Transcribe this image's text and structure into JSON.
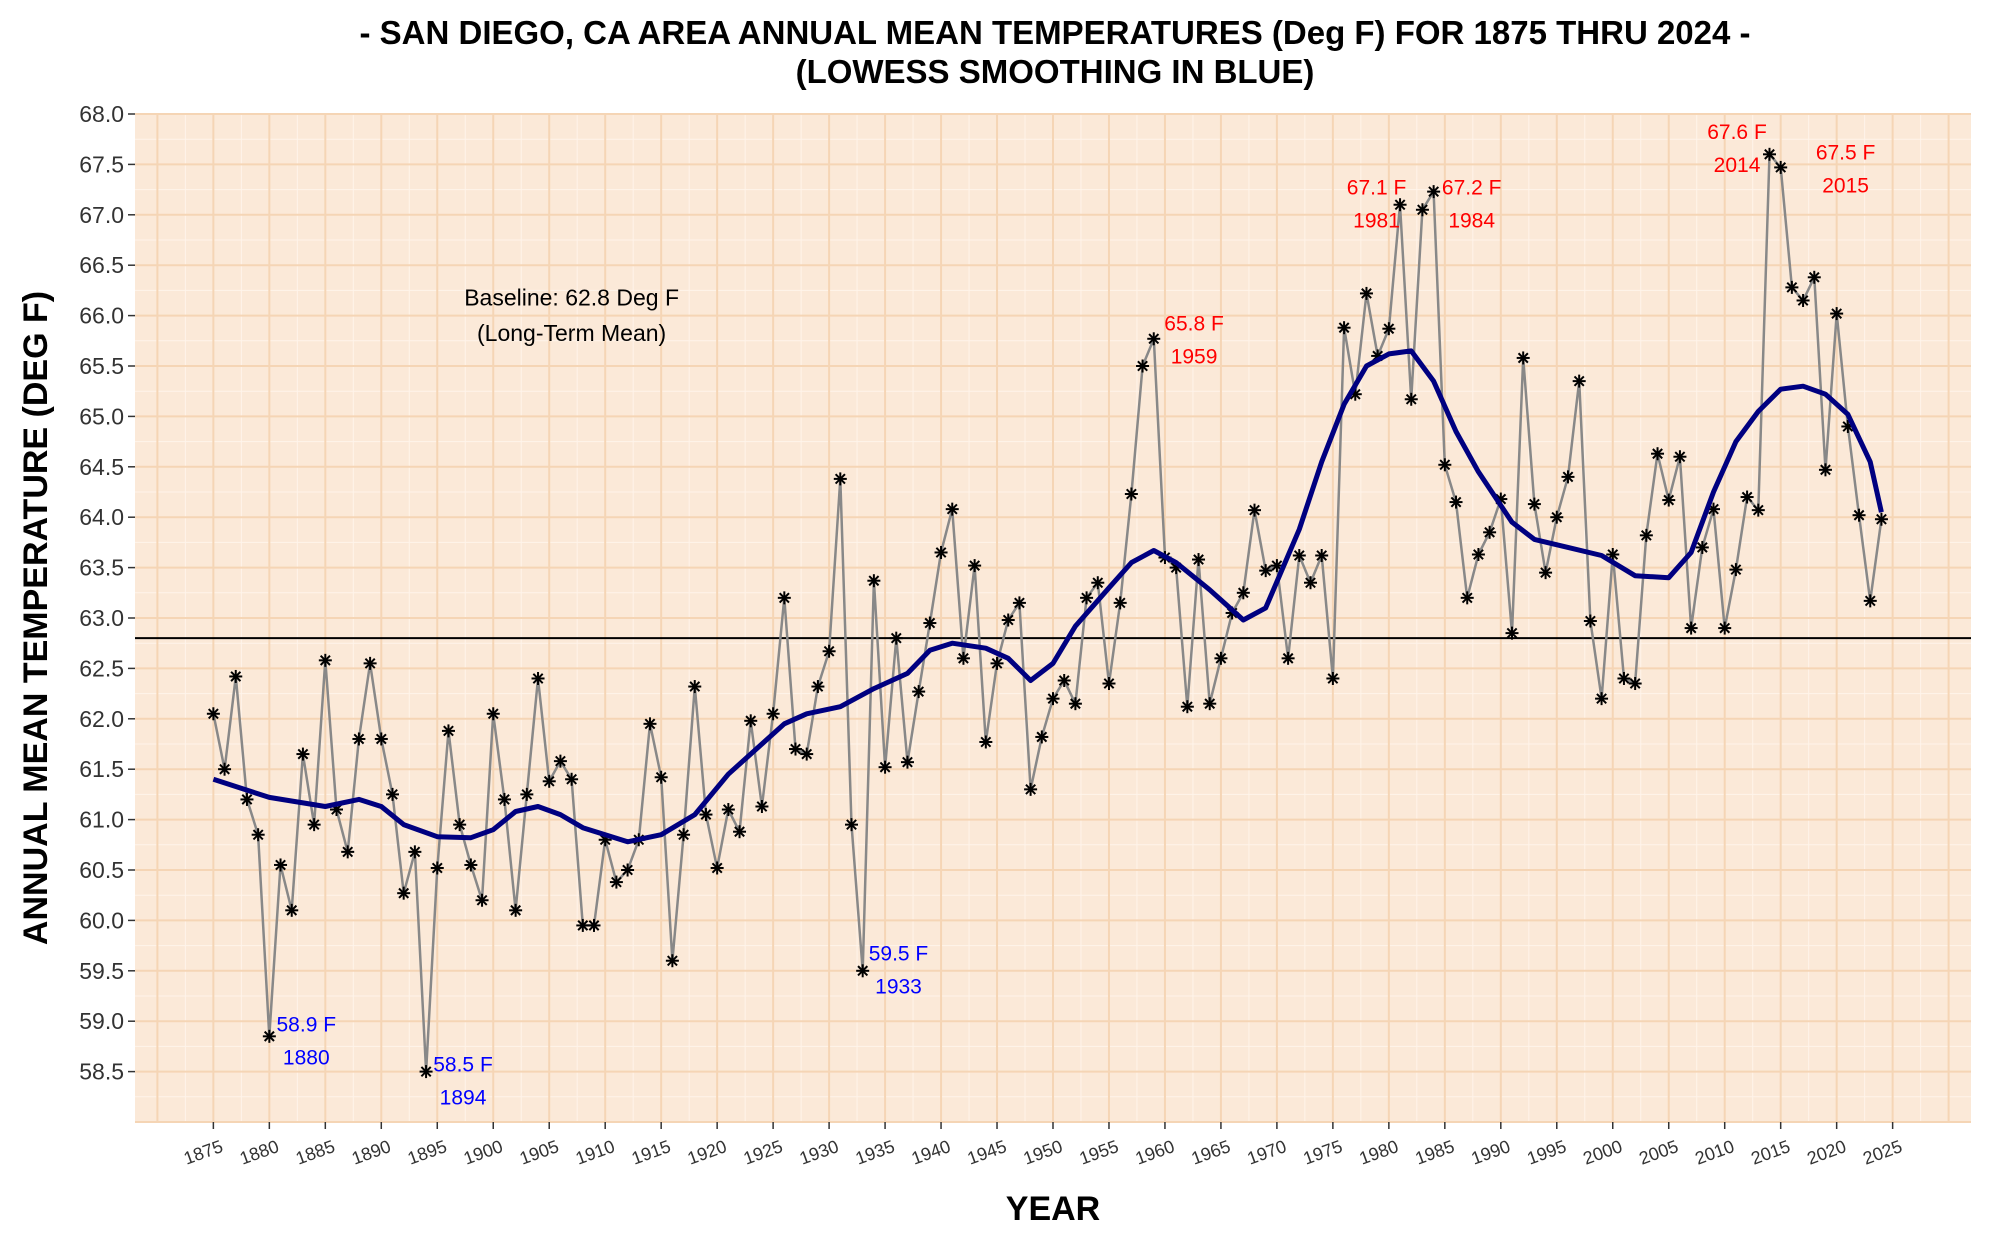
{
  "chart_data": {
    "type": "line",
    "title": "- SAN DIEGO, CA AREA ANNUAL MEAN TEMPERATURES (Deg F) FOR 1875 THRU 2024 -",
    "subtitle": "(LOWESS SMOOTHING IN BLUE)",
    "xlabel": "YEAR",
    "ylabel": "ANNUAL MEAN TEMPERATURE (DEG F)",
    "xlim": [
      1868,
      2032
    ],
    "ylim": [
      58.0,
      68.0
    ],
    "x_ticks": [
      "1875",
      "1880",
      "1885",
      "1890",
      "1895",
      "1900",
      "1905",
      "1910",
      "1915",
      "1920",
      "1925",
      "1930",
      "1935",
      "1940",
      "1945",
      "1950",
      "1955",
      "1960",
      "1965",
      "1970",
      "1975",
      "1980",
      "1985",
      "1990",
      "1995",
      "2000",
      "2005",
      "2010",
      "2015",
      "2020",
      "2025"
    ],
    "y_ticks": [
      "58.5",
      "59.0",
      "59.5",
      "60.0",
      "60.5",
      "61.0",
      "61.5",
      "62.0",
      "62.5",
      "63.0",
      "63.5",
      "64.0",
      "64.5",
      "65.0",
      "65.5",
      "66.0",
      "66.5",
      "67.0",
      "67.5",
      "68.0"
    ],
    "grid": true,
    "colors": {
      "panel_bg": "#fbe9d8",
      "grid_major": "#f5d5b5",
      "grid_minor": "#fff4ea",
      "raw_line": "#888888",
      "marker": "#000000",
      "smooth_line": "#000080",
      "high_label": "#ff0000",
      "low_label": "#0000ff",
      "baseline": "#000000"
    },
    "baseline": {
      "value": 62.8,
      "label_line1": "Baseline: 62.8 Deg F",
      "label_line2": "(Long-Term Mean)"
    },
    "series": [
      {
        "x_start": 1875,
        "x_step": 1,
        "values": [
          62.05,
          61.5,
          62.42,
          61.2,
          60.85,
          58.85,
          60.55,
          60.1,
          61.65,
          60.95,
          62.58,
          61.1,
          60.68,
          61.8,
          62.55,
          61.8,
          61.25,
          60.27,
          60.68,
          58.5,
          60.52,
          61.88,
          60.95,
          60.55,
          60.2,
          62.05,
          61.2,
          60.1,
          61.25,
          62.4,
          61.38,
          61.58,
          61.4,
          59.95,
          59.95,
          60.8,
          60.38,
          60.5,
          60.8,
          61.95,
          61.42,
          59.6,
          60.85,
          62.32,
          61.05,
          60.52,
          61.1,
          60.88,
          61.98,
          61.13,
          62.05,
          63.2,
          61.7,
          61.65,
          62.32,
          62.67,
          64.38,
          60.95,
          59.5,
          63.37,
          61.52,
          62.8,
          61.57,
          62.27,
          62.95,
          63.65,
          64.08,
          62.6,
          63.52,
          61.77,
          62.55,
          62.98,
          63.15,
          61.3,
          61.82,
          62.2,
          62.38,
          62.15,
          63.2,
          63.35,
          62.35,
          63.15,
          64.23,
          65.5,
          65.77,
          63.6,
          63.5,
          62.12,
          63.58,
          62.15,
          62.6,
          63.05,
          63.25,
          64.07,
          63.47,
          63.52,
          62.6,
          63.62,
          63.35,
          63.62,
          62.4,
          65.88,
          65.22,
          66.22,
          65.6,
          65.87,
          67.1,
          65.17,
          67.05,
          67.23,
          64.52,
          64.15,
          63.2,
          63.63,
          63.85,
          64.18,
          62.85,
          65.58,
          64.13,
          63.45,
          64.0,
          64.4,
          65.35,
          62.97,
          62.2,
          63.63,
          62.4,
          62.35,
          63.82,
          64.63,
          64.17,
          64.6,
          62.9,
          63.7,
          64.08,
          62.9,
          63.48,
          64.2,
          64.07,
          67.6,
          67.47,
          66.28,
          66.15,
          66.38,
          64.47,
          66.02,
          64.9,
          64.02,
          63.17,
          63.98
        ]
      },
      {
        "name": "LOWESS",
        "points": [
          [
            1875,
            61.4
          ],
          [
            1880,
            61.22
          ],
          [
            1885,
            61.13
          ],
          [
            1888,
            61.2
          ],
          [
            1890,
            61.13
          ],
          [
            1892,
            60.95
          ],
          [
            1895,
            60.83
          ],
          [
            1898,
            60.82
          ],
          [
            1900,
            60.9
          ],
          [
            1902,
            61.08
          ],
          [
            1904,
            61.13
          ],
          [
            1906,
            61.05
          ],
          [
            1908,
            60.92
          ],
          [
            1910,
            60.85
          ],
          [
            1912,
            60.78
          ],
          [
            1915,
            60.85
          ],
          [
            1918,
            61.05
          ],
          [
            1921,
            61.45
          ],
          [
            1924,
            61.75
          ],
          [
            1926,
            61.95
          ],
          [
            1928,
            62.05
          ],
          [
            1931,
            62.12
          ],
          [
            1934,
            62.3
          ],
          [
            1937,
            62.45
          ],
          [
            1939,
            62.68
          ],
          [
            1941,
            62.75
          ],
          [
            1944,
            62.7
          ],
          [
            1946,
            62.6
          ],
          [
            1948,
            62.38
          ],
          [
            1950,
            62.55
          ],
          [
            1952,
            62.92
          ],
          [
            1955,
            63.3
          ],
          [
            1957,
            63.55
          ],
          [
            1959,
            63.67
          ],
          [
            1961,
            63.55
          ],
          [
            1964,
            63.28
          ],
          [
            1966,
            63.08
          ],
          [
            1967,
            62.98
          ],
          [
            1969,
            63.1
          ],
          [
            1972,
            63.88
          ],
          [
            1974,
            64.55
          ],
          [
            1976,
            65.12
          ],
          [
            1978,
            65.5
          ],
          [
            1980,
            65.62
          ],
          [
            1982,
            65.65
          ],
          [
            1984,
            65.35
          ],
          [
            1986,
            64.85
          ],
          [
            1988,
            64.45
          ],
          [
            1991,
            63.95
          ],
          [
            1993,
            63.78
          ],
          [
            1996,
            63.7
          ],
          [
            1999,
            63.62
          ],
          [
            2002,
            63.42
          ],
          [
            2005,
            63.4
          ],
          [
            2007,
            63.65
          ],
          [
            2009,
            64.25
          ],
          [
            2011,
            64.75
          ],
          [
            2013,
            65.05
          ],
          [
            2015,
            65.27
          ],
          [
            2017,
            65.3
          ],
          [
            2019,
            65.22
          ],
          [
            2021,
            65.02
          ],
          [
            2023,
            64.55
          ],
          [
            2024,
            64.05
          ]
        ]
      }
    ],
    "annotations": [
      {
        "x": 1883.3,
        "y": 58.9,
        "line1": "58.9 F",
        "line2": "1880",
        "color": "low"
      },
      {
        "x": 1897.3,
        "y": 58.5,
        "line1": "58.5 F",
        "line2": "1894",
        "color": "low"
      },
      {
        "x": 1936.2,
        "y": 59.6,
        "line1": "59.5 F",
        "line2": "1933",
        "color": "low"
      },
      {
        "x": 1962.6,
        "y": 65.85,
        "line1": "65.8 F",
        "line2": "1959",
        "color": "high"
      },
      {
        "x": 1978.9,
        "y": 67.2,
        "line1": "67.1 F",
        "line2": "1981",
        "color": "high"
      },
      {
        "x": 1987.4,
        "y": 67.2,
        "line1": "67.2 F",
        "line2": "1984",
        "color": "high"
      },
      {
        "x": 2011.1,
        "y": 67.75,
        "line1": "67.6 F",
        "line2": "2014",
        "color": "high"
      },
      {
        "x": 2020.8,
        "y": 67.55,
        "line1": "67.5 F",
        "line2": "2015",
        "color": "high"
      }
    ]
  }
}
